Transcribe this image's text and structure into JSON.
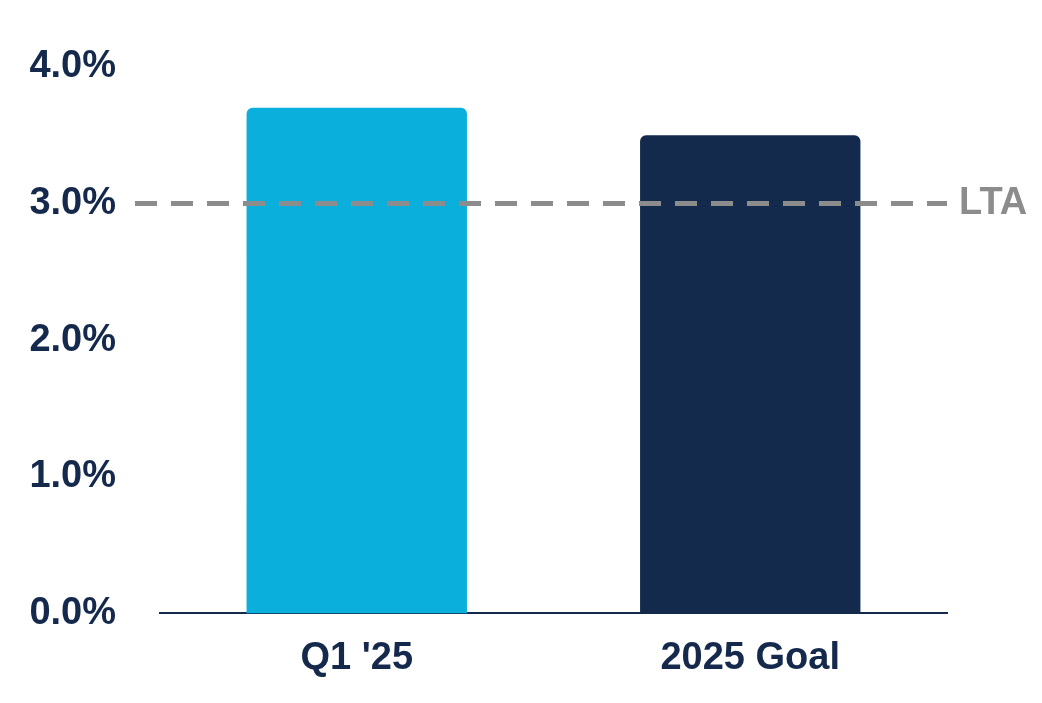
{
  "chart_data": {
    "type": "bar",
    "categories": [
      "Q1 '25",
      "2025 Goal"
    ],
    "values": [
      3.7,
      3.5
    ],
    "colors": [
      "#0aafdc",
      "#142a4c"
    ],
    "ylim": [
      0,
      4
    ],
    "yticks": [
      {
        "value": 0,
        "label": "0.0%"
      },
      {
        "value": 1,
        "label": "1.0%"
      },
      {
        "value": 2,
        "label": "2.0%"
      },
      {
        "value": 3,
        "label": "3.0%"
      },
      {
        "value": 4,
        "label": "4.0%"
      }
    ],
    "grid": false,
    "legend": false,
    "ref_lines": [
      {
        "axis": "y",
        "value": 3,
        "label": "LTA",
        "color": "#8c8c8c",
        "line_style": "dashed"
      }
    ]
  }
}
